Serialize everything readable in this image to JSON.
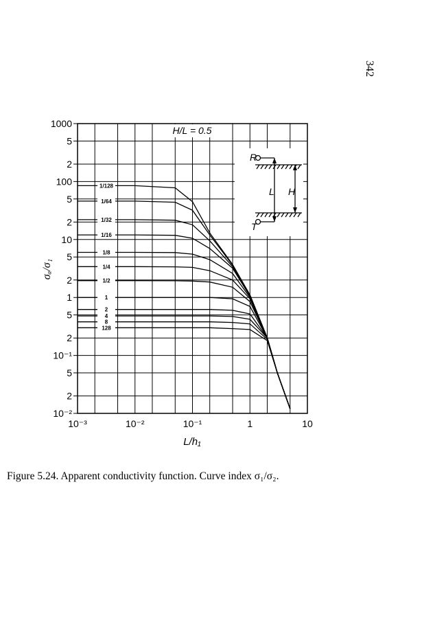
{
  "page_number": "342",
  "caption": "Figure 5.24. Apparent conductivity function. Curve index σ₁/σ₂.",
  "chart_data": {
    "type": "line",
    "annotation": "H/L = 0.5",
    "x_label": "L/h₁",
    "y_label": "σₐ/σ₁",
    "log_x": true,
    "log_y": true,
    "grid": true,
    "xlim": [
      0.001,
      10
    ],
    "ylim": [
      0.01,
      1000
    ],
    "xticks": [
      {
        "value": 0.001,
        "label": "10⁻³"
      },
      {
        "value": 0.01,
        "label": "10⁻²"
      },
      {
        "value": 0.1,
        "label": "10⁻¹"
      },
      1,
      10
    ],
    "xgrid": [
      0.002,
      0.005,
      0.02,
      0.05,
      0.2,
      0.5,
      2,
      5
    ],
    "yticks": [
      {
        "value": 1000,
        "label": "1000"
      },
      {
        "value": 500,
        "label": "5"
      },
      {
        "value": 200,
        "label": "2"
      },
      100,
      {
        "value": 50,
        "label": "5"
      },
      {
        "value": 20,
        "label": "2"
      },
      10,
      5,
      2,
      1,
      {
        "value": 0.5,
        "label": "5"
      },
      {
        "value": 0.2,
        "label": "2"
      },
      {
        "value": 0.1,
        "label": "10⁻¹"
      },
      {
        "value": 0.05,
        "label": "5"
      },
      {
        "value": 0.02,
        "label": "2"
      },
      {
        "value": 0.01,
        "label": "10⁻²"
      }
    ],
    "inset_labels": [
      "R",
      "T",
      "L",
      "H"
    ],
    "x": [
      0.001,
      0.01,
      0.05,
      0.1,
      0.2,
      0.5,
      1,
      2,
      3,
      5
    ],
    "series": [
      {
        "name": "1/128",
        "color": "#000000",
        "values": [
          85,
          85,
          78,
          45,
          13,
          3.7,
          1.1,
          0.2,
          0.05,
          0.012
        ]
      },
      {
        "name": "1/64",
        "color": "#000000",
        "values": [
          46,
          46,
          44,
          32,
          12,
          3.6,
          1.1,
          0.2,
          0.05,
          0.012
        ]
      },
      {
        "name": "1/32",
        "color": "#000000",
        "values": [
          22,
          22,
          21.5,
          18,
          9.5,
          3.4,
          1.1,
          0.2,
          0.05,
          0.012
        ]
      },
      {
        "name": "1/16",
        "color": "#000000",
        "values": [
          12,
          12,
          11.8,
          10.5,
          7,
          3.2,
          1.05,
          0.2,
          0.05,
          0.012
        ]
      },
      {
        "name": "1/8",
        "color": "#000000",
        "values": [
          6,
          6,
          5.95,
          5.6,
          4.5,
          2.6,
          1,
          0.2,
          0.05,
          0.012
        ]
      },
      {
        "name": "1/4",
        "color": "#000000",
        "values": [
          3.4,
          3.4,
          3.38,
          3.3,
          2.9,
          2,
          0.95,
          0.2,
          0.05,
          0.012
        ]
      },
      {
        "name": "1/2",
        "color": "#000000",
        "values": [
          1.95,
          1.95,
          1.94,
          1.92,
          1.85,
          1.5,
          0.85,
          0.2,
          0.05,
          0.012
        ]
      },
      {
        "name": "1",
        "color": "#000000",
        "values": [
          1,
          1,
          1,
          1,
          1,
          0.95,
          0.7,
          0.2,
          0.05,
          0.012
        ]
      },
      {
        "name": "2",
        "color": "#000000",
        "values": [
          0.62,
          0.62,
          0.62,
          0.62,
          0.62,
          0.6,
          0.52,
          0.2,
          0.05,
          0.012
        ]
      },
      {
        "name": "4",
        "color": "#000000",
        "values": [
          0.48,
          0.48,
          0.48,
          0.48,
          0.48,
          0.47,
          0.42,
          0.2,
          0.05,
          0.012
        ]
      },
      {
        "name": "8",
        "color": "#000000",
        "values": [
          0.38,
          0.38,
          0.38,
          0.38,
          0.38,
          0.37,
          0.35,
          0.19,
          0.05,
          0.012
        ]
      },
      {
        "name": "128",
        "color": "#000000",
        "values": [
          0.3,
          0.3,
          0.3,
          0.3,
          0.3,
          0.29,
          0.28,
          0.18,
          0.05,
          0.012
        ]
      }
    ]
  }
}
